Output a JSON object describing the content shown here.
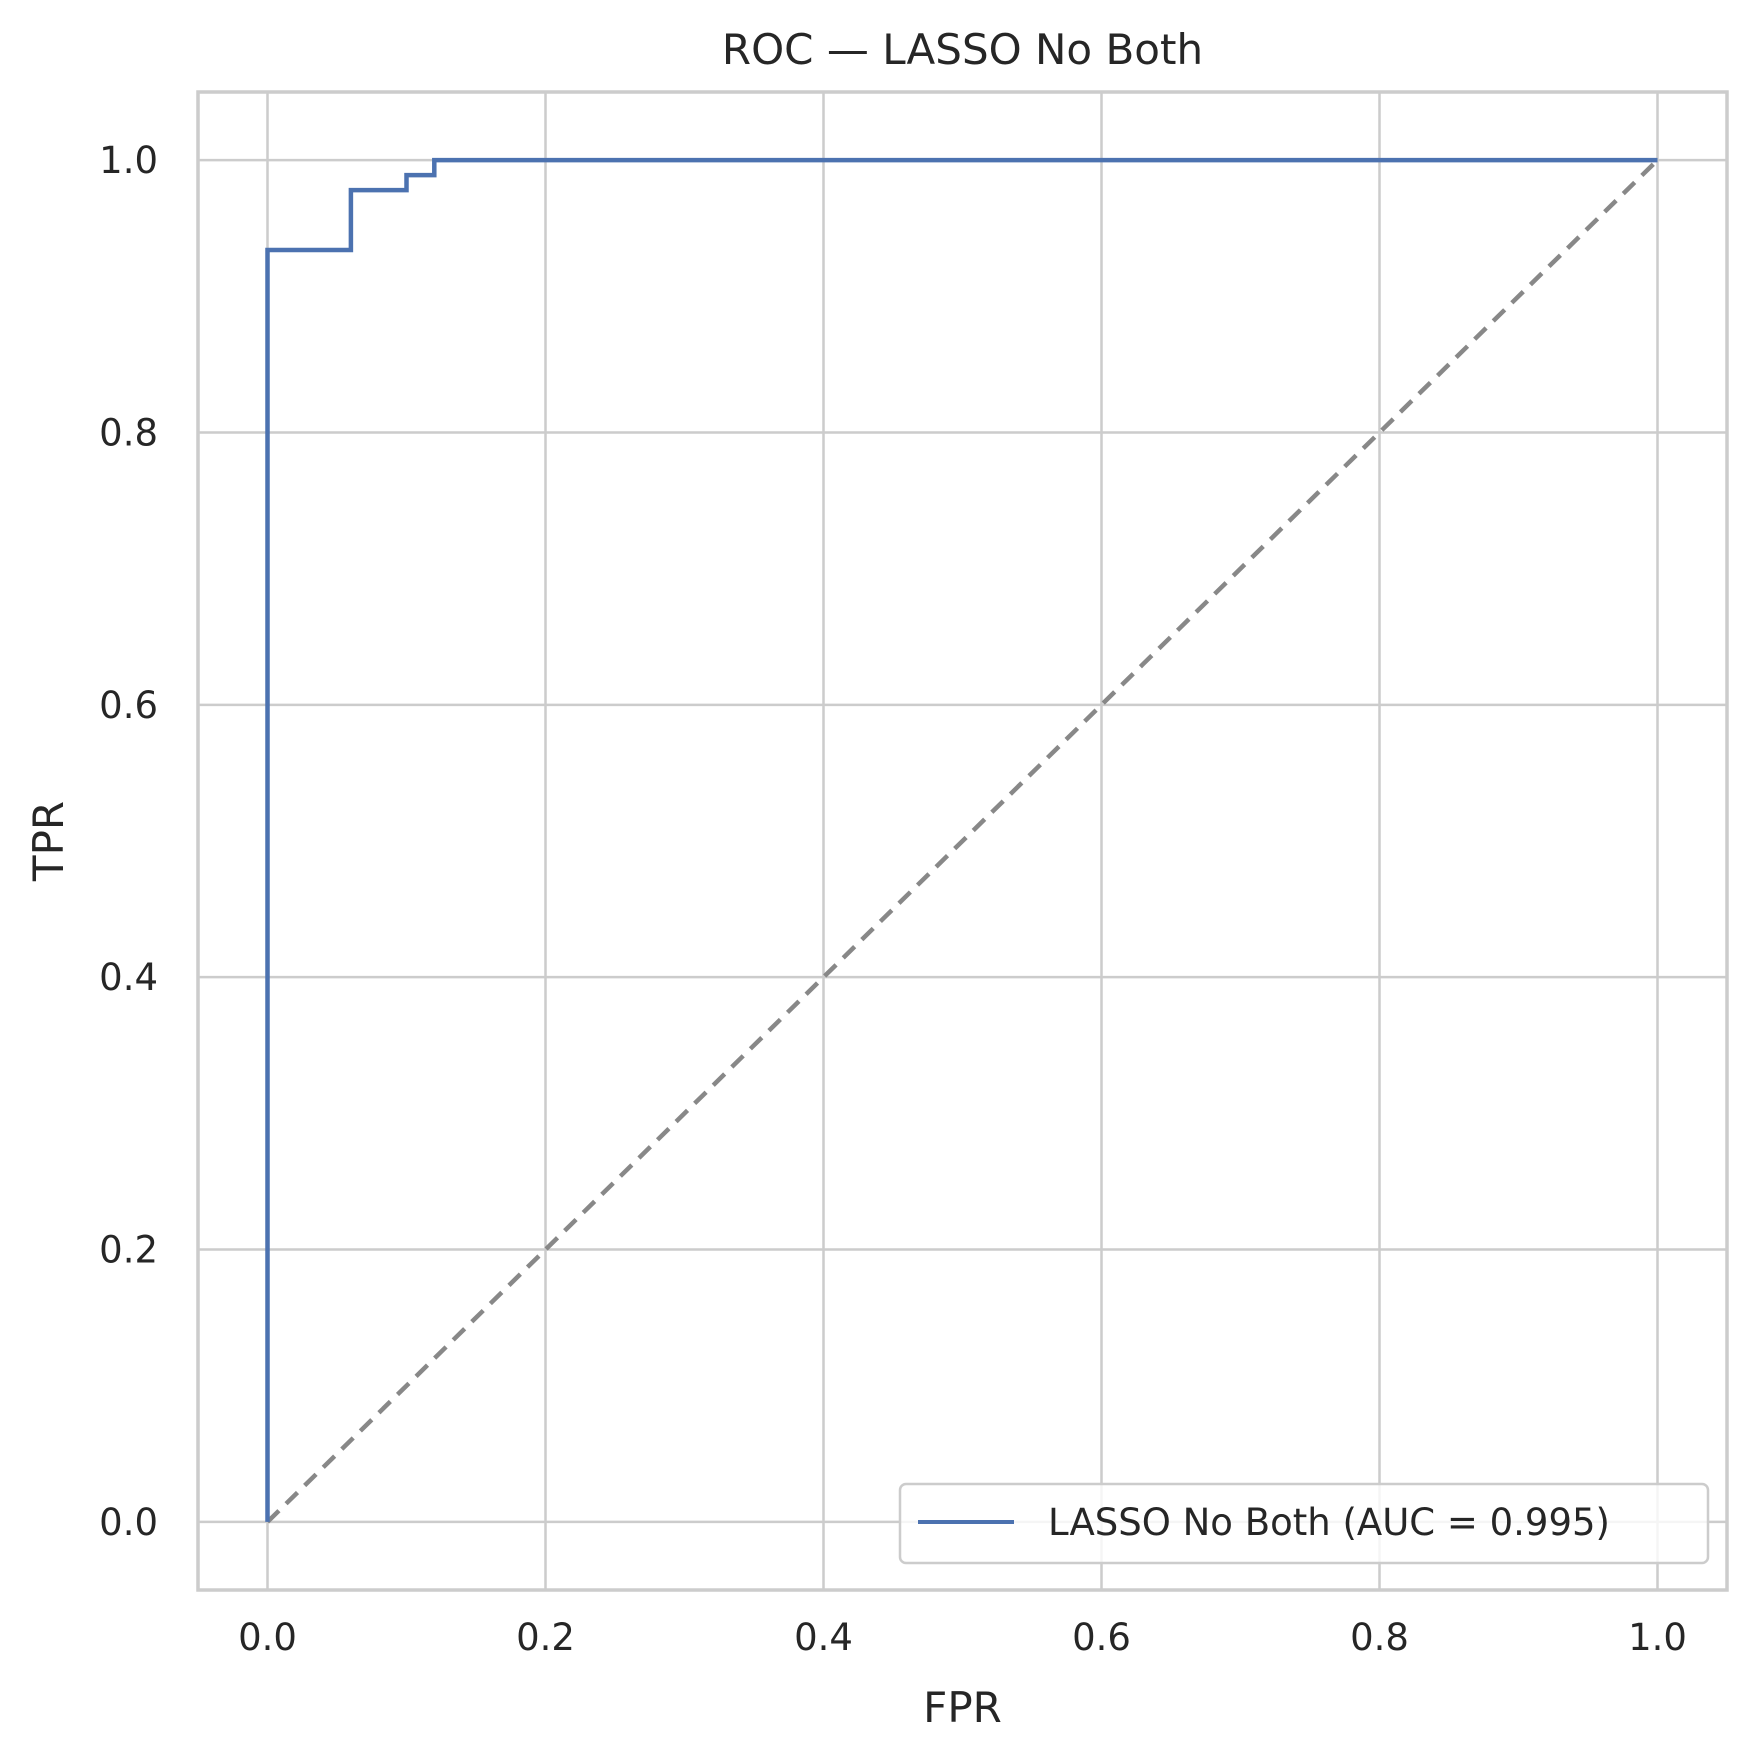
{
  "chart_data": {
    "type": "line",
    "title": "ROC — LASSO No Both",
    "xlabel": "FPR",
    "ylabel": "TPR",
    "xlim": [
      -0.05,
      1.05
    ],
    "ylim": [
      -0.05,
      1.05
    ],
    "xticks": [
      0.0,
      0.2,
      0.4,
      0.6,
      0.8,
      1.0
    ],
    "xtick_labels": [
      "0.0",
      "0.2",
      "0.4",
      "0.6",
      "0.8",
      "1.0"
    ],
    "yticks": [
      0.0,
      0.2,
      0.4,
      0.6,
      0.8,
      1.0
    ],
    "ytick_labels": [
      "0.0",
      "0.2",
      "0.4",
      "0.6",
      "0.8",
      "1.0"
    ],
    "grid": true,
    "legend_position": "lower-right",
    "series": [
      {
        "name": "LASSO No Both (AUC = 0.995)",
        "color": "#4c72b0",
        "style": "solid",
        "x": [
          0.0,
          0.0,
          0.0,
          0.06,
          0.06,
          0.1,
          0.1,
          0.12,
          0.12,
          1.0
        ],
        "y": [
          0.0,
          0.5,
          0.934,
          0.934,
          0.978,
          0.978,
          0.989,
          0.989,
          1.0,
          1.0
        ]
      },
      {
        "color": "#888888",
        "style": "dashed",
        "x": [
          0.0,
          1.0
        ],
        "y": [
          0.0,
          1.0
        ]
      }
    ]
  }
}
